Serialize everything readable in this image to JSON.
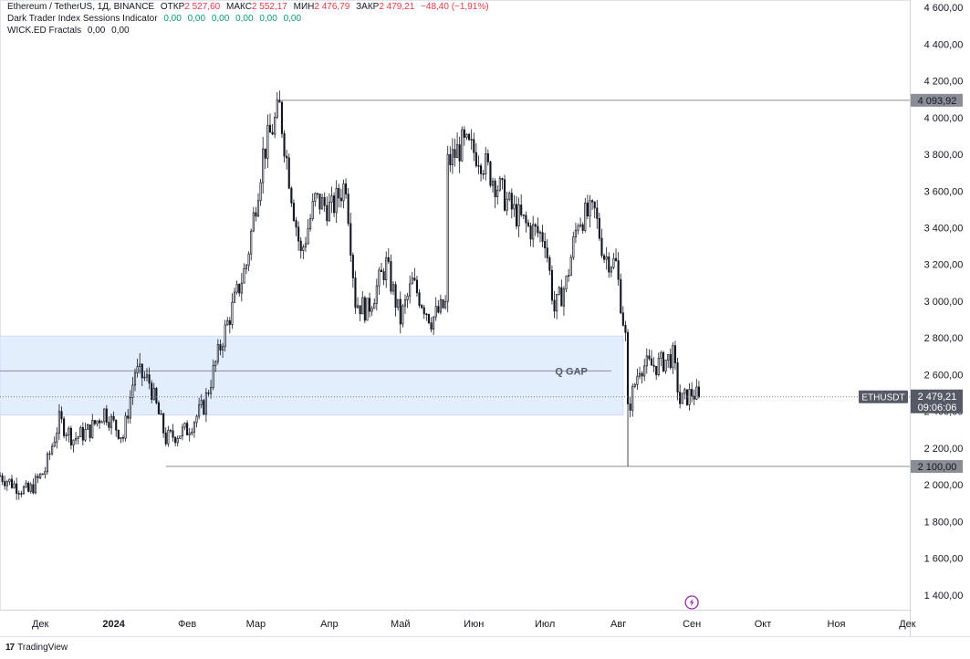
{
  "legend": {
    "symbol": "Ethereum / TetherUS, 1Д, BINANCE",
    "open_label": "ОТКР",
    "open": "2 527,60",
    "high_label": "МАКС",
    "high": "2 552,17",
    "low_label": "МИН",
    "low": "2 476,79",
    "close_label": "ЗАКР",
    "close": "2 479,21",
    "change": "−48,40 (−1,91%)",
    "indicator1_name": "Dark Trader Index Sessions Indicator",
    "indicator1_values": [
      "0,00",
      "0,00",
      "0,00",
      "0,00",
      "0,00",
      "0,00"
    ],
    "indicator2_name": "WICK.ED Fractals",
    "indicator2_values": [
      "0,00",
      "0,00"
    ]
  },
  "footer": {
    "brand": "TradingView"
  },
  "colors": {
    "up": "#131722",
    "down": "#131722",
    "zone_fill": "#e3eefd",
    "label_bg": "#787b86",
    "last_price_bg": "#555a66"
  },
  "chart_data": {
    "type": "candlestick",
    "title": "Ethereum / TetherUS, 1Д, BINANCE",
    "y_axis": {
      "ticks": [
        "4 600,00",
        "4 400,00",
        "4 200,00",
        "4 000,00",
        "3 800,00",
        "3 600,00",
        "3 400,00",
        "3 200,00",
        "3 000,00",
        "2 800,00",
        "2 600,00",
        "2 400,00",
        "2 200,00",
        "2 000,00",
        "1 800,00",
        "1 600,00",
        "1 400,00"
      ],
      "tick_values": [
        4600,
        4400,
        4200,
        4000,
        3800,
        3600,
        3400,
        3200,
        3000,
        2800,
        2600,
        2400,
        2200,
        2000,
        1800,
        1600,
        1400
      ],
      "range": [
        1320,
        4640
      ]
    },
    "x_axis": {
      "ticks": [
        "Дек",
        "2024",
        "Фев",
        "Мар",
        "Апр",
        "Май",
        "Июн",
        "Июл",
        "Авг",
        "Сен",
        "Окт",
        "Ноя",
        "Дек"
      ],
      "tick_dates": [
        "2023-12-01",
        "2024-01-01",
        "2024-02-01",
        "2024-03-01",
        "2024-04-01",
        "2024-05-01",
        "2024-06-01",
        "2024-07-01",
        "2024-08-01",
        "2024-09-01",
        "2024-10-01",
        "2024-11-01",
        "2024-12-01"
      ],
      "range": [
        "2023-11-14",
        "2024-12-02"
      ]
    },
    "levels": [
      {
        "name": "high-line",
        "value": 4093.92,
        "label": "4 093,92",
        "from": "2024-03-12"
      },
      {
        "name": "low-line",
        "value": 2100.0,
        "label": "2 100,00",
        "from": "2024-01-23"
      },
      {
        "name": "gap-line",
        "value": 2620,
        "from": "2023-11-14",
        "to": "2024-07-29"
      }
    ],
    "zone": {
      "label": "Q GAP",
      "y_top": 2810,
      "y_bottom": 2380
    },
    "last_price": {
      "symbol": "ETHUSDT",
      "value": 2479.21,
      "label": "2 479,21",
      "countdown": "09:06:06"
    },
    "anchors": [
      [
        "2023-11-14",
        2050
      ],
      [
        "2023-11-20",
        2000
      ],
      [
        "2023-11-26",
        1960
      ],
      [
        "2023-12-03",
        2080
      ],
      [
        "2023-12-09",
        2350
      ],
      [
        "2023-12-15",
        2250
      ],
      [
        "2023-12-22",
        2300
      ],
      [
        "2023-12-28",
        2400
      ],
      [
        "2024-01-05",
        2260
      ],
      [
        "2024-01-10",
        2620
      ],
      [
        "2024-01-16",
        2560
      ],
      [
        "2024-01-23",
        2250
      ],
      [
        "2024-02-01",
        2300
      ],
      [
        "2024-02-08",
        2430
      ],
      [
        "2024-02-16",
        2800
      ],
      [
        "2024-02-26",
        3200
      ],
      [
        "2024-03-04",
        3800
      ],
      [
        "2024-03-11",
        4050
      ],
      [
        "2024-03-17",
        3500
      ],
      [
        "2024-03-20",
        3250
      ],
      [
        "2024-03-26",
        3550
      ],
      [
        "2024-04-02",
        3500
      ],
      [
        "2024-04-08",
        3650
      ],
      [
        "2024-04-12",
        3000
      ],
      [
        "2024-04-17",
        2950
      ],
      [
        "2024-04-25",
        3200
      ],
      [
        "2024-05-01",
        2900
      ],
      [
        "2024-05-06",
        3100
      ],
      [
        "2024-05-14",
        2900
      ],
      [
        "2024-05-20",
        2980
      ],
      [
        "2024-05-21",
        3750
      ],
      [
        "2024-05-27",
        3850
      ],
      [
        "2024-06-03",
        3800
      ],
      [
        "2024-06-10",
        3650
      ],
      [
        "2024-06-17",
        3500
      ],
      [
        "2024-06-24",
        3400
      ],
      [
        "2024-07-01",
        3350
      ],
      [
        "2024-07-05",
        2950
      ],
      [
        "2024-07-10",
        3100
      ],
      [
        "2024-07-15",
        3450
      ],
      [
        "2024-07-22",
        3480
      ],
      [
        "2024-07-26",
        3250
      ],
      [
        "2024-07-31",
        3200
      ],
      [
        "2024-08-04",
        2800
      ],
      [
        "2024-08-05",
        2400
      ],
      [
        "2024-08-10",
        2650
      ],
      [
        "2024-08-17",
        2650
      ],
      [
        "2024-08-24",
        2700
      ],
      [
        "2024-08-27",
        2450
      ],
      [
        "2024-09-01",
        2500
      ],
      [
        "2024-09-04",
        2479.21
      ]
    ],
    "grid": false
  }
}
